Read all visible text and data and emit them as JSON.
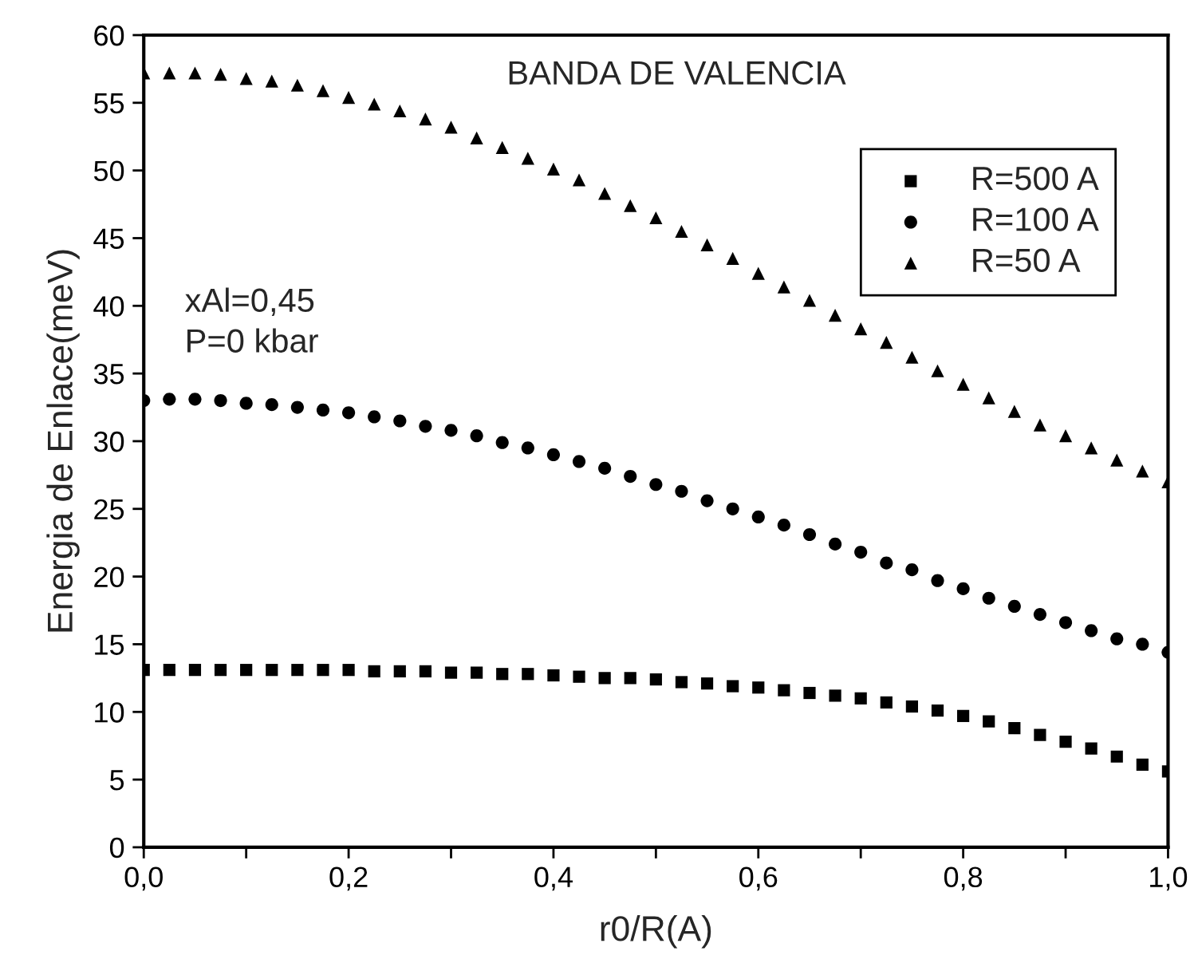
{
  "chart_data": {
    "type": "scatter",
    "title": "BANDA DE VALENCIA",
    "xlabel": "r0/R(A)",
    "ylabel": "Energia de Enlace(meV)",
    "annotations": [
      "xAl=0,45",
      "P=0 kbar"
    ],
    "x": [
      0,
      0.025,
      0.05,
      0.075,
      0.1,
      0.125,
      0.15,
      0.175,
      0.2,
      0.225,
      0.25,
      0.275,
      0.3,
      0.325,
      0.35,
      0.375,
      0.4,
      0.425,
      0.45,
      0.475,
      0.5,
      0.525,
      0.55,
      0.575,
      0.6,
      0.625,
      0.65,
      0.675,
      0.7,
      0.725,
      0.75,
      0.775,
      0.8,
      0.825,
      0.85,
      0.875,
      0.9,
      0.925,
      0.95,
      0.975,
      1.0
    ],
    "series": [
      {
        "name": "R=500 A",
        "color": "#000000",
        "marker": "square",
        "values": [
          13.1,
          13.1,
          13.1,
          13.1,
          13.1,
          13.1,
          13.1,
          13.1,
          13.1,
          13.0,
          13.0,
          13.0,
          12.9,
          12.9,
          12.8,
          12.8,
          12.7,
          12.6,
          12.5,
          12.5,
          12.4,
          12.2,
          12.1,
          11.9,
          11.8,
          11.6,
          11.4,
          11.2,
          11.0,
          10.7,
          10.4,
          10.1,
          9.7,
          9.3,
          8.8,
          8.3,
          7.8,
          7.3,
          6.7,
          6.1,
          5.6
        ]
      },
      {
        "name": "R=100 A",
        "color": "#000000",
        "marker": "circle",
        "values": [
          33.0,
          33.1,
          33.1,
          33.0,
          32.8,
          32.7,
          32.5,
          32.3,
          32.1,
          31.8,
          31.5,
          31.1,
          30.8,
          30.4,
          29.9,
          29.5,
          29.0,
          28.5,
          28.0,
          27.4,
          26.8,
          26.3,
          25.6,
          25.0,
          24.4,
          23.8,
          23.1,
          22.4,
          21.8,
          21.0,
          20.5,
          19.7,
          19.1,
          18.4,
          17.8,
          17.2,
          16.6,
          16.0,
          15.4,
          15.0,
          14.4
        ]
      },
      {
        "name": "R=50 A",
        "color": "#000000",
        "marker": "triangle",
        "values": [
          57.2,
          57.2,
          57.2,
          57.1,
          56.8,
          56.6,
          56.3,
          55.9,
          55.4,
          54.9,
          54.4,
          53.8,
          53.2,
          52.4,
          51.7,
          50.9,
          50.1,
          49.3,
          48.3,
          47.4,
          46.5,
          45.5,
          44.5,
          43.5,
          42.4,
          41.4,
          40.4,
          39.3,
          38.3,
          37.3,
          36.2,
          35.2,
          34.2,
          33.2,
          32.2,
          31.2,
          30.4,
          29.5,
          28.6,
          27.8,
          27.0
        ]
      }
    ],
    "xlim": [
      0,
      1.0
    ],
    "ylim": [
      0,
      60
    ],
    "xticks": [
      {
        "value": 0,
        "label": "0,0"
      },
      {
        "value": 0.1,
        "label": null
      },
      {
        "value": 0.2,
        "label": "0,2"
      },
      {
        "value": 0.3,
        "label": null
      },
      {
        "value": 0.4,
        "label": "0,4"
      },
      {
        "value": 0.5,
        "label": null
      },
      {
        "value": 0.6,
        "label": "0,6"
      },
      {
        "value": 0.7,
        "label": null
      },
      {
        "value": 0.8,
        "label": "0,8"
      },
      {
        "value": 0.9,
        "label": null
      },
      {
        "value": 1.0,
        "label": "1,0"
      }
    ],
    "yticks": [
      0,
      5,
      10,
      15,
      20,
      25,
      30,
      35,
      40,
      45,
      50,
      55,
      60
    ],
    "grid": false,
    "legend": "top right"
  }
}
